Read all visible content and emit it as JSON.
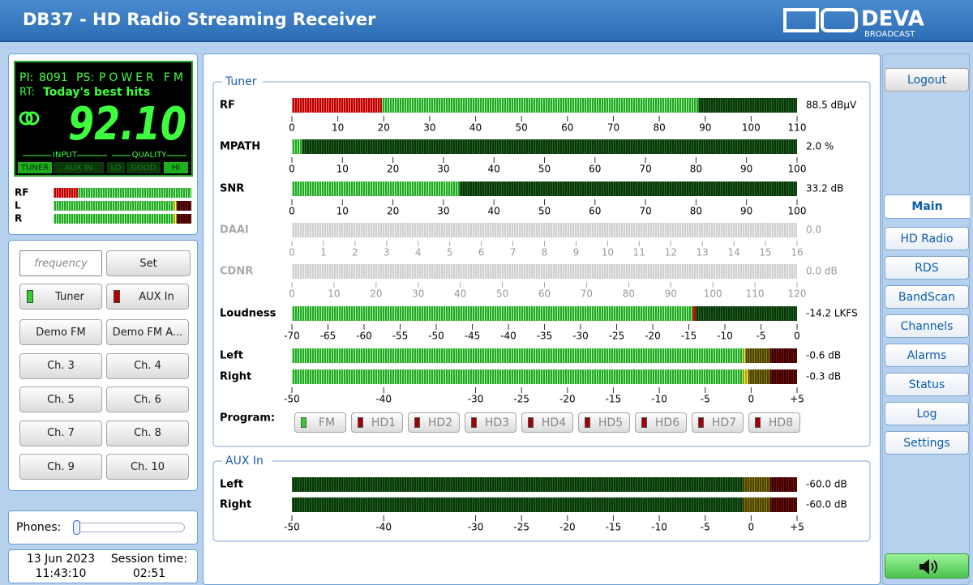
{
  "header": {
    "title": "DB37 - HD Radio Streaming Receiver",
    "logo": "DEVA",
    "logo_sub": "BROADCAST"
  },
  "display": {
    "pi_label": "PI:",
    "pi": "8091",
    "ps_label": "PS:",
    "ps": "POWER FM",
    "rt_label": "RT:",
    "rt": "Today's best hits",
    "frequency": "92.10",
    "input_label": "INPUT",
    "quality_label": "QUALITY",
    "inputs": [
      "TUNER",
      "AUX IN"
    ],
    "qualities": [
      "LO",
      "GOOD",
      "HI"
    ]
  },
  "mini_meters": [
    "RF",
    "L",
    "R"
  ],
  "controls": {
    "frequency_placeholder": "frequency",
    "set": "Set",
    "sources": [
      "Tuner",
      "AUX In"
    ],
    "presets": [
      "Demo FM",
      "Demo FM A...",
      "Ch. 3",
      "Ch. 4",
      "Ch. 5",
      "Ch. 6",
      "Ch. 7",
      "Ch. 8",
      "Ch. 9",
      "Ch. 10"
    ]
  },
  "phones": {
    "label": "Phones:"
  },
  "status": {
    "date": "13 Jun 2023",
    "time": "11:43:10",
    "session_label": "Session time:",
    "session": "02:51"
  },
  "tuner": {
    "legend": "Tuner",
    "meters": [
      {
        "label": "RF",
        "value": 88.5,
        "readout": "88.5 dBµV",
        "enabled": true,
        "range": [
          0,
          110
        ],
        "ticks": [
          0,
          10,
          20,
          30,
          40,
          50,
          60,
          70,
          80,
          90,
          100,
          110
        ]
      },
      {
        "label": "MPATH",
        "value": 2.0,
        "readout": "2.0 %",
        "enabled": true,
        "range": [
          0,
          100
        ],
        "ticks": [
          0,
          10,
          20,
          30,
          40,
          50,
          60,
          70,
          80,
          90,
          100
        ]
      },
      {
        "label": "SNR",
        "value": 33.2,
        "readout": "33.2 dB",
        "enabled": true,
        "range": [
          0,
          100
        ],
        "ticks": [
          0,
          10,
          20,
          30,
          40,
          50,
          60,
          70,
          80,
          90,
          100
        ]
      },
      {
        "label": "DAAI",
        "value": 0.0,
        "readout": "0.0",
        "enabled": false,
        "range": [
          0,
          16
        ],
        "ticks": [
          0,
          1,
          2,
          3,
          4,
          5,
          6,
          7,
          8,
          9,
          10,
          11,
          12,
          13,
          14,
          15,
          16
        ]
      },
      {
        "label": "CDNR",
        "value": 0.0,
        "readout": "0.0 dB",
        "enabled": false,
        "range": [
          0,
          120
        ],
        "ticks": [
          0,
          10,
          20,
          30,
          40,
          50,
          60,
          70,
          80,
          90,
          100,
          110,
          120
        ]
      },
      {
        "label": "Loudness",
        "value": -14.2,
        "readout": "-14.2 LKFS",
        "enabled": true,
        "range": [
          -70,
          0
        ],
        "ticks": [
          -70,
          -65,
          -60,
          -55,
          -50,
          -45,
          -40,
          -35,
          -30,
          -25,
          -20,
          -15,
          -10,
          -5,
          0
        ]
      }
    ],
    "stereo": {
      "meters": [
        {
          "label": "Left",
          "value": -0.6,
          "readout": "-0.6 dB"
        },
        {
          "label": "Right",
          "value": -0.3,
          "readout": "-0.3 dB"
        }
      ],
      "range": [
        -50,
        5
      ],
      "ticks": [
        -50,
        -40,
        -30,
        -25,
        -20,
        -15,
        -10,
        -5,
        0,
        {
          "value": 5,
          "label": "+5"
        }
      ]
    },
    "program_label": "Program:",
    "programs": [
      "FM",
      "HD1",
      "HD2",
      "HD3",
      "HD4",
      "HD5",
      "HD6",
      "HD7",
      "HD8"
    ]
  },
  "aux": {
    "legend": "AUX In",
    "meters": [
      {
        "label": "Left",
        "value": -60.0,
        "readout": "-60.0 dB"
      },
      {
        "label": "Right",
        "value": -60.0,
        "readout": "-60.0 dB"
      }
    ],
    "range": [
      -50,
      5
    ],
    "ticks": [
      -50,
      -40,
      -30,
      -25,
      -20,
      -15,
      -10,
      -5,
      0,
      {
        "value": 5,
        "label": "+5"
      }
    ]
  },
  "nav": {
    "logout": "Logout",
    "tabs": [
      "Main",
      "HD Radio",
      "RDS",
      "BandScan",
      "Channels",
      "Alarms",
      "Status",
      "Log",
      "Settings"
    ],
    "active": 0
  }
}
